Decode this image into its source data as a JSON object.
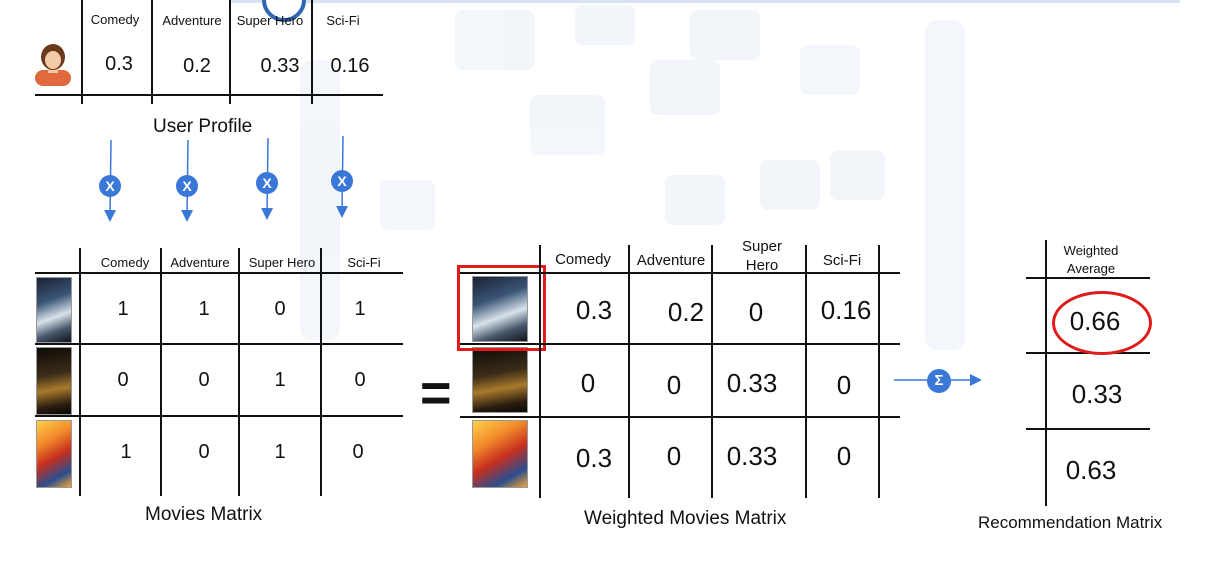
{
  "user_profile": {
    "headers": [
      "Comedy",
      "Adventure",
      "Super Hero",
      "Sci-Fi"
    ],
    "values": [
      "0.3",
      "0.2",
      "0.33",
      "0.16"
    ],
    "caption": "User Profile"
  },
  "operators": {
    "multiply": "X",
    "equals": "=",
    "sum": "Σ"
  },
  "movies_matrix": {
    "headers": [
      "Comedy",
      "Adventure",
      "Super Hero",
      "Sci-Fi"
    ],
    "rows": [
      [
        "1",
        "1",
        "0",
        "1"
      ],
      [
        "0",
        "0",
        "1",
        "0"
      ],
      [
        "1",
        "0",
        "1",
        "0"
      ]
    ],
    "caption": "Movies Matrix"
  },
  "weighted_matrix": {
    "headers": [
      "Comedy",
      "Adventure",
      "Super Hero",
      "Sci-Fi"
    ],
    "rows": [
      [
        "0.3",
        "0.2",
        "0",
        "0.16"
      ],
      [
        "0",
        "0",
        "0.33",
        "0"
      ],
      [
        "0.3",
        "0",
        "0.33",
        "0"
      ]
    ],
    "caption": "Weighted Movies Matrix"
  },
  "recommendation": {
    "header": "Weighted Average",
    "values": [
      "0.66",
      "0.33",
      "0.63"
    ],
    "caption": "Recommendation Matrix"
  },
  "colors": {
    "accent": "#3a78d8",
    "highlight": "#e01b1b",
    "line": "#111111"
  }
}
